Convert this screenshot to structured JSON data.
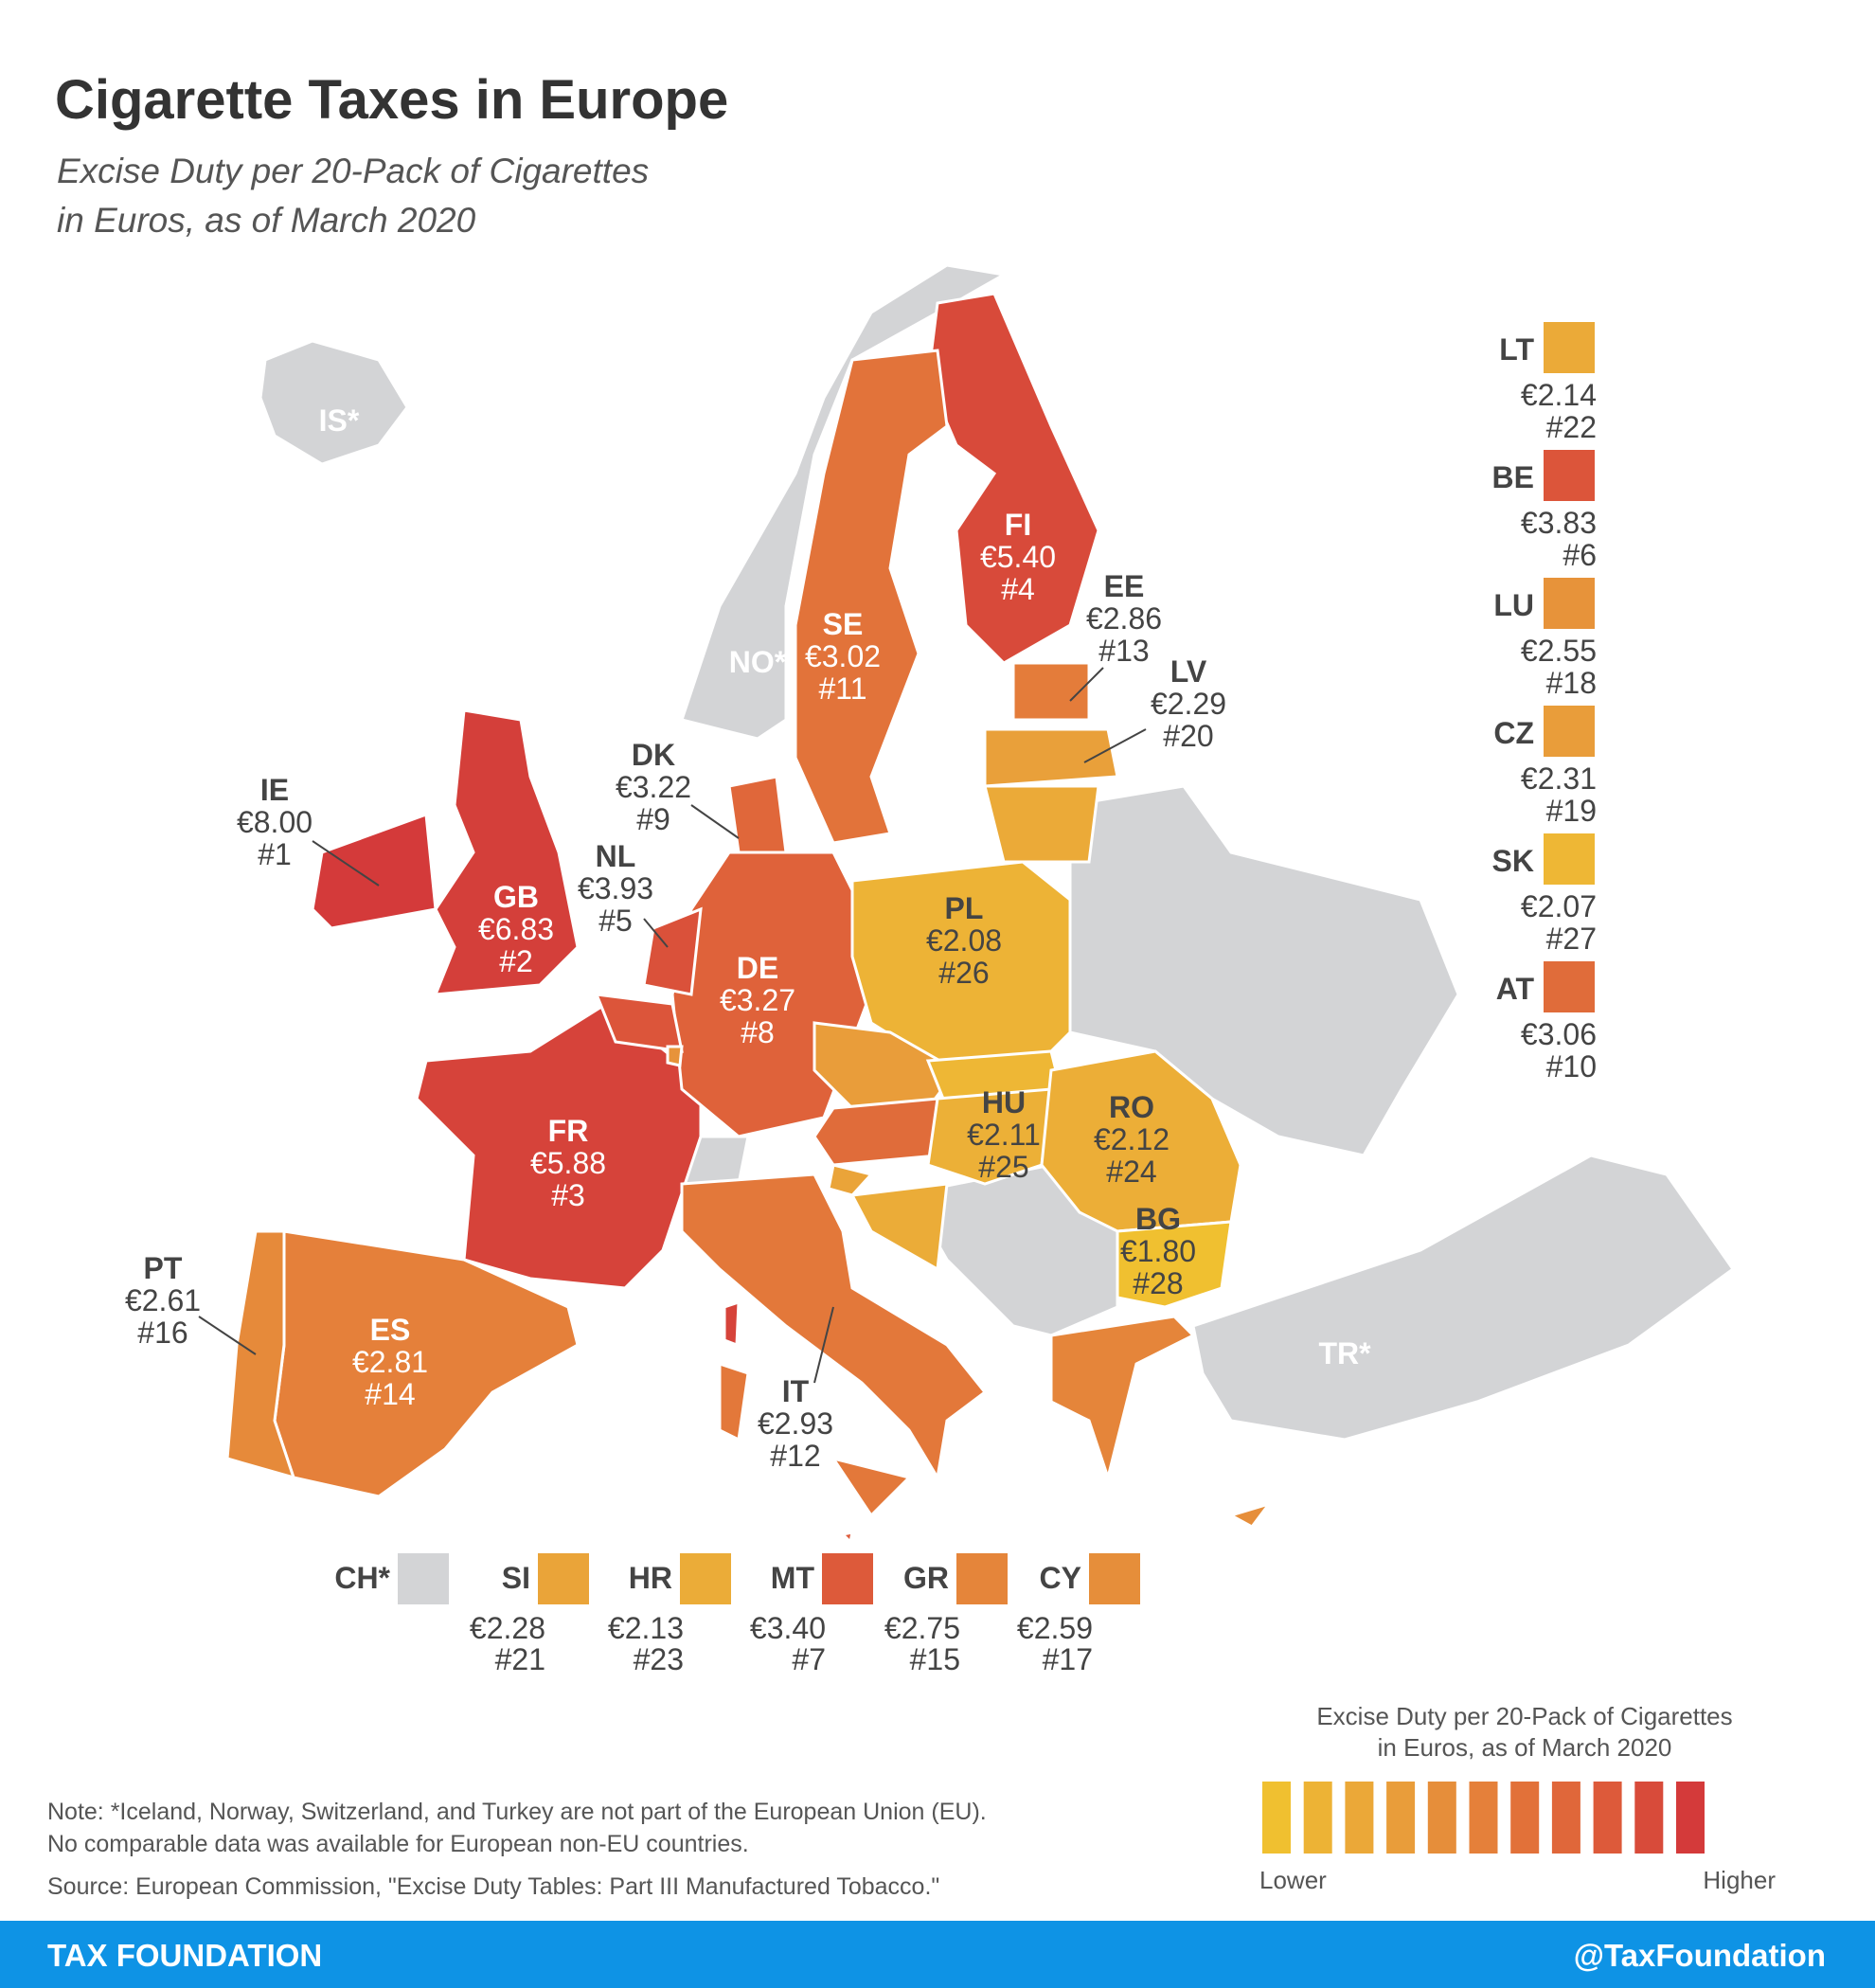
{
  "header": {
    "title": "Cigarette Taxes in Europe",
    "subtitle_line1": "Excise Duty per 20-Pack of Cigarettes",
    "subtitle_line2": "in Euros, as of March 2020"
  },
  "chart_data": {
    "type": "choropleth-map",
    "title": "Cigarette Taxes in Europe",
    "subtitle": "Excise Duty per 20-Pack of Cigarettes in Euros, as of March 2020",
    "unit": "EUR per 20-pack",
    "countries": [
      {
        "code": "IE",
        "tax": "€8.00",
        "value": 8.0,
        "rank": "#1",
        "color": "#D43A3A"
      },
      {
        "code": "GB",
        "tax": "€6.83",
        "value": 6.83,
        "rank": "#2",
        "color": "#D43F3A"
      },
      {
        "code": "FR",
        "tax": "€5.88",
        "value": 5.88,
        "rank": "#3",
        "color": "#D6433A"
      },
      {
        "code": "FI",
        "tax": "€5.40",
        "value": 5.4,
        "rank": "#4",
        "color": "#D84A3A"
      },
      {
        "code": "NL",
        "tax": "€3.93",
        "value": 3.93,
        "rank": "#5",
        "color": "#DA513A"
      },
      {
        "code": "BE",
        "tax": "€3.83",
        "value": 3.83,
        "rank": "#6",
        "color": "#DC553A"
      },
      {
        "code": "MT",
        "tax": "€3.40",
        "value": 3.4,
        "rank": "#7",
        "color": "#DD5A3A"
      },
      {
        "code": "DE",
        "tax": "€3.27",
        "value": 3.27,
        "rank": "#8",
        "color": "#DF623A"
      },
      {
        "code": "DK",
        "tax": "€3.22",
        "value": 3.22,
        "rank": "#9",
        "color": "#E0673A"
      },
      {
        "code": "AT",
        "tax": "€3.06",
        "value": 3.06,
        "rank": "#10",
        "color": "#E06C3A"
      },
      {
        "code": "SE",
        "tax": "€3.02",
        "value": 3.02,
        "rank": "#11",
        "color": "#E2733A"
      },
      {
        "code": "IT",
        "tax": "€2.93",
        "value": 2.93,
        "rank": "#12",
        "color": "#E3783A"
      },
      {
        "code": "EE",
        "tax": "€2.86",
        "value": 2.86,
        "rank": "#13",
        "color": "#E47C3A"
      },
      {
        "code": "ES",
        "tax": "€2.81",
        "value": 2.81,
        "rank": "#14",
        "color": "#E5803A"
      },
      {
        "code": "GR",
        "tax": "€2.75",
        "value": 2.75,
        "rank": "#15",
        "color": "#E5853A"
      },
      {
        "code": "PT",
        "tax": "€2.61",
        "value": 2.61,
        "rank": "#16",
        "color": "#E68A3A"
      },
      {
        "code": "CY",
        "tax": "€2.59",
        "value": 2.59,
        "rank": "#17",
        "color": "#E68E3A"
      },
      {
        "code": "LU",
        "tax": "€2.55",
        "value": 2.55,
        "rank": "#18",
        "color": "#E7933A"
      },
      {
        "code": "CZ",
        "tax": "€2.31",
        "value": 2.31,
        "rank": "#19",
        "color": "#E99D3A"
      },
      {
        "code": "LV",
        "tax": "€2.29",
        "value": 2.29,
        "rank": "#20",
        "color": "#E9A03A"
      },
      {
        "code": "SI",
        "tax": "€2.28",
        "value": 2.28,
        "rank": "#21",
        "color": "#EAA439"
      },
      {
        "code": "LT",
        "tax": "€2.14",
        "value": 2.14,
        "rank": "#22",
        "color": "#EBAA38"
      },
      {
        "code": "HR",
        "tax": "€2.13",
        "value": 2.13,
        "rank": "#23",
        "color": "#EBAC38"
      },
      {
        "code": "RO",
        "tax": "€2.12",
        "value": 2.12,
        "rank": "#24",
        "color": "#ECAE37"
      },
      {
        "code": "HU",
        "tax": "€2.11",
        "value": 2.11,
        "rank": "#25",
        "color": "#ECB037"
      },
      {
        "code": "PL",
        "tax": "€2.08",
        "value": 2.08,
        "rank": "#26",
        "color": "#EDB336"
      },
      {
        "code": "SK",
        "tax": "€2.07",
        "value": 2.07,
        "rank": "#27",
        "color": "#EEB735"
      },
      {
        "code": "BG",
        "tax": "€1.80",
        "value": 1.8,
        "rank": "#28",
        "color": "#F0C030"
      }
    ],
    "non_eu": [
      {
        "code": "IS*"
      },
      {
        "code": "NO*"
      },
      {
        "code": "CH*"
      },
      {
        "code": "TR*"
      }
    ],
    "non_eu_color": "#D3D4D6",
    "legend": {
      "title_line1": "Excise Duty per 20-Pack of Cigarettes",
      "title_line2": "in Euros, as of March 2020",
      "low": "Lower",
      "high": "Higher",
      "colors": [
        "#F0C030",
        "#EDB335",
        "#EBA838",
        "#E99D3A",
        "#E68E3A",
        "#E5803A",
        "#E27139",
        "#E0673A",
        "#DD5A3A",
        "#D84B3A",
        "#D43A3A"
      ]
    }
  },
  "notes": {
    "note1": "Note: *Iceland, Norway, Switzerland, and Turkey are not part of the European Union (EU).",
    "note2": "No comparable data was available for European non-EU countries.",
    "source": "Source: European Commission, \"Excise Duty Tables: Part III Manufactured Tobacco.\""
  },
  "footer": {
    "brand": "TAX FOUNDATION",
    "handle": "@TaxFoundation"
  }
}
